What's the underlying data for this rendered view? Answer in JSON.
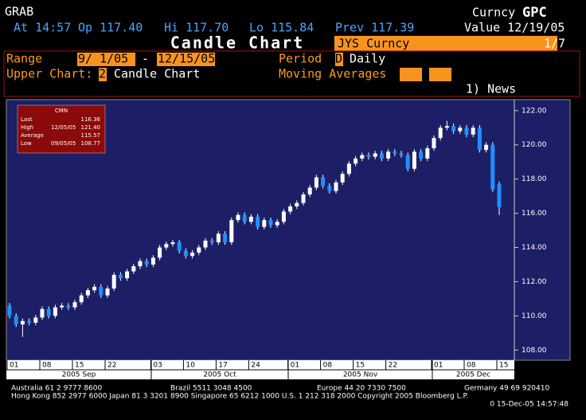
{
  "header": {
    "ticker": "GRAB",
    "security_type": "Curncy",
    "function": "GPC",
    "at": "At 14:57",
    "open": "Op 117.40",
    "high": "Hi 117.70",
    "low": "Lo 115.84",
    "prev": "Prev 117.39",
    "value_date": "Value 12/19/05",
    "page_title": "Candle Chart",
    "security": "JYS Curncy",
    "page": "1/7"
  },
  "controls": {
    "range_label": "Range",
    "range_start": "9/ 1/05",
    "range_sep": "-",
    "range_end": "12/15/05",
    "period_label": "Period",
    "period_code": "D",
    "period_name": "Daily",
    "upper_chart_label": "Upper Chart:",
    "upper_chart_code": "2",
    "upper_chart_name": "Candle Chart",
    "moving_averages_label": "Moving Averages",
    "news": "1) News"
  },
  "chart_data": {
    "type": "candlestick",
    "categories": [
      "01",
      null,
      null,
      null,
      null,
      "08",
      null,
      null,
      null,
      null,
      "15",
      null,
      null,
      null,
      null,
      "22",
      null,
      null,
      null,
      null,
      null,
      null,
      "03",
      null,
      null,
      null,
      null,
      "10",
      null,
      null,
      null,
      null,
      "17",
      null,
      null,
      null,
      null,
      "24",
      null,
      null,
      null,
      null,
      null,
      "01",
      null,
      null,
      null,
      null,
      "08",
      null,
      null,
      null,
      null,
      "15",
      null,
      null,
      null,
      null,
      "22",
      null,
      null,
      null,
      null,
      null,
      null,
      "01",
      null,
      null,
      null,
      null,
      "08",
      null,
      null,
      null,
      null,
      "15"
    ],
    "x_groups": [
      "2005 Sep",
      "2005 Oct",
      "2005 Nov",
      "2005 Dec"
    ],
    "open": [
      110.6,
      110.0,
      109.5,
      109.7,
      109.6,
      109.9,
      110.4,
      110.0,
      110.5,
      110.6,
      110.5,
      110.8,
      111.2,
      111.5,
      111.7,
      111.2,
      111.6,
      112.4,
      112.2,
      112.6,
      112.9,
      113.2,
      113.0,
      113.4,
      114.0,
      114.2,
      114.3,
      113.8,
      113.5,
      113.7,
      114.0,
      114.4,
      114.3,
      114.8,
      114.3,
      115.6,
      115.9,
      115.5,
      115.8,
      115.2,
      115.6,
      115.3,
      115.5,
      116.1,
      116.4,
      116.6,
      117.1,
      117.5,
      118.1,
      117.6,
      117.3,
      117.8,
      118.3,
      118.9,
      119.2,
      119.4,
      119.3,
      119.5,
      119.2,
      119.6,
      119.5,
      119.4,
      118.6,
      119.6,
      119.2,
      119.8,
      120.4,
      121.0,
      121.1,
      120.8,
      121.0,
      120.6,
      121.0,
      119.7,
      120.0,
      117.7
    ],
    "high": [
      110.75,
      110.15,
      109.85,
      109.85,
      110.05,
      110.55,
      110.55,
      110.65,
      110.75,
      110.75,
      110.95,
      111.35,
      111.65,
      111.85,
      111.85,
      111.75,
      112.55,
      112.55,
      112.75,
      113.05,
      113.35,
      113.35,
      113.55,
      114.15,
      114.35,
      114.45,
      114.45,
      113.95,
      113.85,
      114.15,
      114.55,
      114.55,
      114.95,
      114.95,
      115.75,
      116.05,
      116.05,
      115.95,
      115.95,
      115.75,
      115.75,
      115.65,
      116.25,
      116.55,
      116.75,
      117.25,
      117.65,
      118.25,
      118.25,
      117.75,
      117.95,
      118.45,
      119.05,
      119.35,
      119.55,
      119.55,
      119.65,
      119.65,
      119.75,
      119.75,
      119.65,
      119.55,
      119.75,
      119.75,
      119.95,
      120.55,
      121.15,
      121.4,
      121.25,
      121.15,
      121.15,
      121.15,
      121.15,
      120.15,
      120.15,
      117.85
    ],
    "low": [
      109.85,
      109.35,
      108.77,
      109.45,
      109.45,
      109.75,
      109.85,
      109.85,
      110.35,
      110.35,
      110.35,
      110.65,
      111.05,
      111.35,
      111.05,
      111.05,
      111.45,
      112.05,
      112.05,
      112.45,
      112.75,
      112.85,
      112.85,
      113.25,
      113.85,
      114.05,
      113.65,
      113.35,
      113.35,
      113.55,
      113.85,
      114.15,
      114.15,
      114.15,
      114.15,
      115.45,
      115.35,
      115.35,
      115.05,
      115.05,
      115.15,
      115.15,
      115.35,
      115.95,
      116.25,
      116.45,
      116.95,
      117.35,
      117.45,
      117.15,
      117.15,
      117.65,
      118.15,
      118.75,
      119.05,
      119.15,
      119.15,
      119.05,
      119.05,
      119.35,
      119.25,
      118.45,
      118.45,
      119.05,
      119.05,
      119.65,
      120.25,
      120.85,
      120.65,
      120.65,
      120.45,
      120.45,
      119.55,
      119.55,
      117.25,
      115.9
    ],
    "close": [
      110.0,
      109.5,
      109.7,
      109.6,
      109.9,
      110.4,
      110.0,
      110.5,
      110.6,
      110.5,
      110.8,
      111.2,
      111.5,
      111.7,
      111.2,
      111.6,
      112.4,
      112.2,
      112.6,
      112.9,
      113.2,
      113.0,
      113.4,
      114.0,
      114.2,
      114.3,
      113.8,
      113.5,
      113.7,
      114.0,
      114.4,
      114.3,
      114.8,
      114.3,
      115.6,
      115.9,
      115.5,
      115.8,
      115.2,
      115.6,
      115.3,
      115.5,
      116.1,
      116.4,
      116.6,
      117.1,
      117.5,
      118.1,
      117.6,
      117.3,
      117.8,
      118.3,
      118.9,
      119.2,
      119.4,
      119.3,
      119.5,
      119.2,
      119.6,
      119.5,
      119.4,
      118.6,
      119.6,
      119.2,
      119.8,
      120.4,
      121.0,
      121.1,
      120.8,
      121.0,
      120.6,
      121.0,
      119.7,
      120.0,
      117.4,
      116.36
    ],
    "up_color": "#ffffff",
    "down_color": "#1e90ff",
    "ylim": [
      107.5,
      122.55
    ],
    "yticks": [
      {
        "value": 108,
        "label": "108.00"
      },
      {
        "value": 110,
        "label": "110.00"
      },
      {
        "value": 112,
        "label": "112.00"
      },
      {
        "value": 114,
        "label": "114.00"
      },
      {
        "value": 116,
        "label": "116.00"
      },
      {
        "value": 118,
        "label": "118.00"
      },
      {
        "value": 120,
        "label": "120.00"
      },
      {
        "value": 122,
        "label": "122.00"
      }
    ],
    "grid": false
  },
  "stats_box": {
    "title": "CMN",
    "rows": [
      [
        "Last",
        "116.36"
      ],
      [
        "High",
        "12/05/05",
        "121.40"
      ],
      [
        "Average",
        "115.57"
      ],
      [
        "Low",
        "09/05/05",
        "108.77"
      ]
    ]
  },
  "footer": {
    "line1": [
      "Australia 61 2 9777 8600",
      "Brazil 5511 3048 4500",
      "Europe 44 20 7330 7500",
      "Germany 49 69 920410"
    ],
    "line2": "Hong Kong 852 2977 6000 Japan 81 3 3201 8900 Singapore 65 6212 1000 U.S. 1 212 318 2000 Copyright 2005 Bloomberg L.P.",
    "line3": "0 15-Dec-05 14:57:48"
  }
}
